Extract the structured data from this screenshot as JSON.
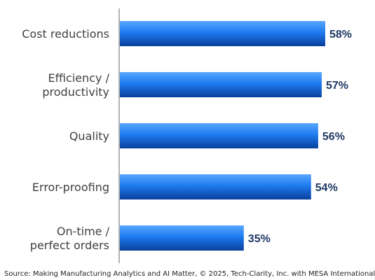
{
  "chart_data": {
    "type": "bar",
    "orientation": "horizontal",
    "categories": [
      [
        "Cost reductions"
      ],
      [
        "Efficiency /",
        "productivity"
      ],
      [
        "Quality"
      ],
      [
        "Error-proofing"
      ],
      [
        "On-time /",
        "perfect orders"
      ]
    ],
    "values": [
      58,
      57,
      56,
      54,
      35
    ],
    "value_labels": [
      "58%",
      "57%",
      "56%",
      "54%",
      "35%"
    ],
    "xlim": [
      0,
      65
    ],
    "grid": false,
    "legend": "none",
    "colors": {
      "bar_light": "#5aa6ff",
      "bar_mid": "#1e7bf0",
      "bar_dark": "#0a3f9c",
      "axis": "#9a9a9a",
      "value_text": "#1f3864",
      "category_text": "#404040"
    }
  },
  "source": "Source: Making Manufacturing Analytics and AI Matter, © 2025, Tech-Clarity, Inc. with MESA International"
}
